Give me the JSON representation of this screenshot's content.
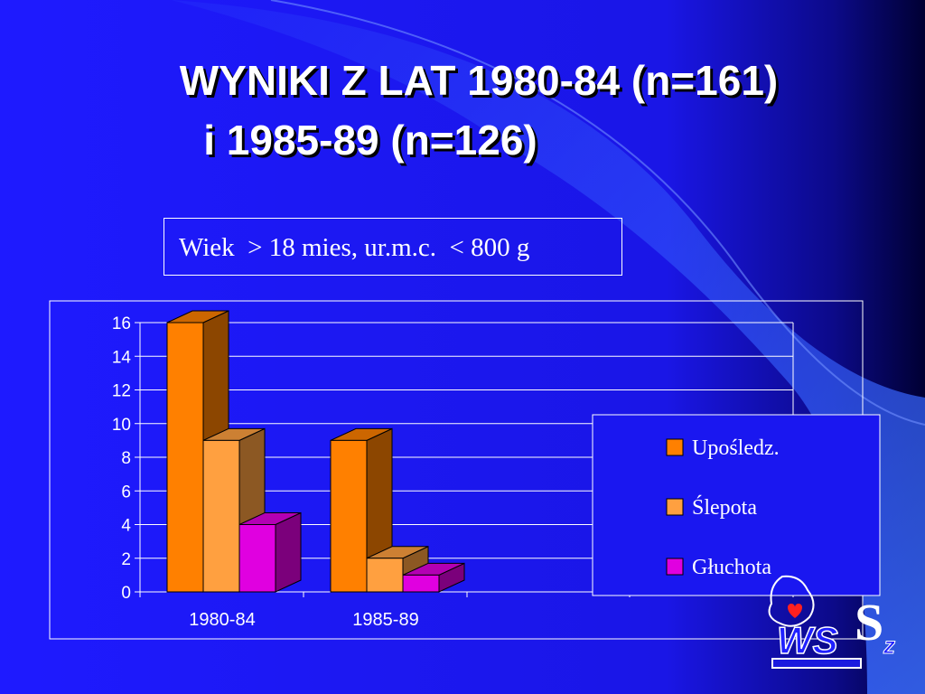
{
  "slide": {
    "title_line1": "WYNIKI Z LAT 1980-84 (n=161)",
    "title_line2": "i 1985-89  (n=126)",
    "subtitle": "Wiek  > 18 mies, ur.m.c.  < 800 g"
  },
  "logo": {
    "icon": "wssz-logo-icon"
  },
  "chart_data": {
    "type": "bar",
    "categories": [
      "1980-84",
      "1985-89"
    ],
    "series": [
      {
        "name": "Upośledz.",
        "values": [
          16,
          9
        ],
        "color": "#ff8000"
      },
      {
        "name": "Ślepota",
        "values": [
          9,
          2
        ],
        "color": "#ffa040"
      },
      {
        "name": "Głuchota",
        "values": [
          4,
          1
        ],
        "color": "#e000e0"
      }
    ],
    "ylim": [
      0,
      16
    ],
    "yticks": [
      "0",
      "2",
      "4",
      "6",
      "8",
      "10",
      "12",
      "14",
      "16"
    ],
    "grid": true,
    "legend_position": "right"
  }
}
